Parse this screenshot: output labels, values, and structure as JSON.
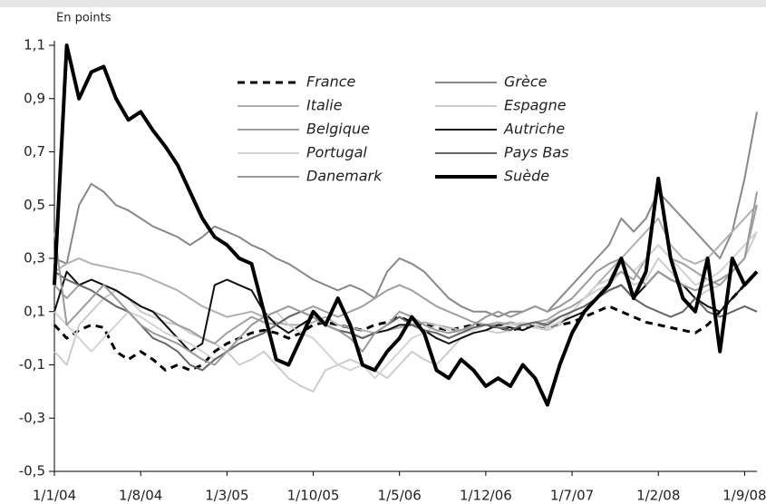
{
  "chart_data": {
    "type": "line",
    "y_label": "En points",
    "categories": [
      "1/1/04",
      null,
      null,
      null,
      null,
      null,
      null,
      "1/8/04",
      null,
      null,
      null,
      null,
      null,
      null,
      "1/3/05",
      null,
      null,
      null,
      null,
      null,
      null,
      "1/10/05",
      null,
      null,
      null,
      null,
      null,
      null,
      "1/5/06",
      null,
      null,
      null,
      null,
      null,
      null,
      "1/12/06",
      null,
      null,
      null,
      null,
      null,
      null,
      "1/7/07",
      null,
      null,
      null,
      null,
      null,
      null,
      "1/2/08",
      null,
      null,
      null,
      null,
      null,
      null,
      "1/9/08",
      null
    ],
    "ylim": [
      -0.5,
      1.1
    ],
    "yticks": [
      {
        "value": -0.5,
        "label": "-0,5"
      },
      {
        "value": -0.3,
        "label": "-0,3"
      },
      {
        "value": -0.1,
        "label": "-0,1"
      },
      {
        "value": 0.1,
        "label": "0,1"
      },
      {
        "value": 0.3,
        "label": "0,3"
      },
      {
        "value": 0.5,
        "label": "0,5"
      },
      {
        "value": 0.7,
        "label": "0,7"
      },
      {
        "value": 0.9,
        "label": "0,9"
      },
      {
        "value": 1.1,
        "label": "1,1"
      }
    ],
    "grid": false,
    "legend": "upper center",
    "series": [
      {
        "name": "France",
        "color": "#000000",
        "dashed": true,
        "values": [
          0.05,
          0.0,
          0.03,
          0.05,
          0.04,
          -0.05,
          -0.08,
          -0.05,
          -0.08,
          -0.12,
          -0.1,
          -0.12,
          -0.1,
          -0.05,
          -0.02,
          0.0,
          0.02,
          0.03,
          0.02,
          0.0,
          0.02,
          0.05,
          0.06,
          0.05,
          0.04,
          0.03,
          0.05,
          0.06,
          0.08,
          0.06,
          0.05,
          0.04,
          0.03,
          0.04,
          0.05,
          0.05,
          0.04,
          0.03,
          0.04,
          0.05,
          0.04,
          0.05,
          0.06,
          0.08,
          0.1,
          0.12,
          0.1,
          0.08,
          0.06,
          0.05,
          0.04,
          0.03,
          0.02,
          0.05,
          0.1,
          0.15,
          0.2,
          0.25
        ]
      },
      {
        "name": "Grèce",
        "color": "#888888",
        "values": [
          0.3,
          0.28,
          0.5,
          0.58,
          0.55,
          0.5,
          0.48,
          0.45,
          0.42,
          0.4,
          0.38,
          0.35,
          0.38,
          0.42,
          0.4,
          0.38,
          0.35,
          0.33,
          0.3,
          0.28,
          0.25,
          0.22,
          0.2,
          0.18,
          0.2,
          0.18,
          0.15,
          0.25,
          0.3,
          0.28,
          0.25,
          0.2,
          0.15,
          0.12,
          0.1,
          0.1,
          0.08,
          0.1,
          0.1,
          0.12,
          0.1,
          0.15,
          0.2,
          0.25,
          0.3,
          0.35,
          0.45,
          0.4,
          0.45,
          0.55,
          0.5,
          0.45,
          0.4,
          0.35,
          0.3,
          0.4,
          0.6,
          0.85
        ]
      },
      {
        "name": "Italie",
        "color": "#b0b0b0",
        "values": [
          0.25,
          0.28,
          0.3,
          0.28,
          0.27,
          0.26,
          0.25,
          0.24,
          0.22,
          0.2,
          0.18,
          0.15,
          0.12,
          0.1,
          0.08,
          0.09,
          0.1,
          0.08,
          0.06,
          0.05,
          0.05,
          0.06,
          0.08,
          0.05,
          0.04,
          0.03,
          0.02,
          0.03,
          0.04,
          0.05,
          0.06,
          0.05,
          0.04,
          0.03,
          0.04,
          0.05,
          0.06,
          0.05,
          0.05,
          0.04,
          0.06,
          0.08,
          0.1,
          0.15,
          0.2,
          0.25,
          0.3,
          0.35,
          0.4,
          0.45,
          0.35,
          0.3,
          0.28,
          0.3,
          0.35,
          0.4,
          0.45,
          0.5
        ]
      },
      {
        "name": "Espagne",
        "color": "#cccccc",
        "values": [
          -0.05,
          -0.1,
          0.05,
          0.1,
          0.15,
          0.18,
          0.15,
          0.1,
          0.08,
          0.06,
          0.05,
          0.02,
          0.0,
          -0.02,
          -0.05,
          -0.1,
          -0.08,
          -0.05,
          -0.1,
          -0.15,
          -0.18,
          -0.2,
          -0.12,
          -0.1,
          -0.08,
          -0.1,
          -0.12,
          -0.15,
          -0.1,
          -0.05,
          -0.08,
          -0.1,
          -0.05,
          0.0,
          0.02,
          0.03,
          0.02,
          0.03,
          0.05,
          0.04,
          0.03,
          0.05,
          0.1,
          0.15,
          0.18,
          0.2,
          0.25,
          0.2,
          0.22,
          0.3,
          0.25,
          0.2,
          0.15,
          0.18,
          0.2,
          0.25,
          0.3,
          0.4
        ]
      },
      {
        "name": "Belgique",
        "color": "#a0a0a0",
        "values": [
          0.2,
          0.15,
          0.2,
          0.22,
          0.2,
          0.18,
          0.15,
          0.12,
          0.1,
          0.08,
          0.05,
          0.03,
          0.0,
          -0.02,
          0.02,
          0.05,
          0.08,
          0.06,
          0.05,
          0.08,
          0.1,
          0.12,
          0.1,
          0.08,
          0.1,
          0.12,
          0.15,
          0.18,
          0.2,
          0.18,
          0.15,
          0.12,
          0.1,
          0.08,
          0.06,
          0.05,
          0.05,
          0.06,
          0.05,
          0.06,
          0.07,
          0.1,
          0.12,
          0.15,
          0.2,
          0.22,
          0.25,
          0.22,
          0.3,
          0.35,
          0.3,
          0.28,
          0.25,
          0.22,
          0.2,
          0.25,
          0.3,
          0.5
        ]
      },
      {
        "name": "Autriche",
        "color": "#111111",
        "values": [
          0.1,
          0.25,
          0.2,
          0.22,
          0.2,
          0.18,
          0.15,
          0.12,
          0.1,
          0.05,
          0.0,
          -0.05,
          -0.02,
          0.2,
          0.22,
          0.2,
          0.18,
          0.1,
          0.05,
          0.02,
          0.05,
          0.08,
          0.05,
          0.03,
          0.02,
          0.0,
          0.02,
          0.03,
          0.05,
          0.05,
          0.03,
          0.0,
          -0.02,
          0.0,
          0.02,
          0.03,
          0.05,
          0.04,
          0.03,
          0.05,
          0.04,
          0.06,
          0.08,
          0.1,
          0.15,
          0.18,
          0.2,
          0.15,
          0.2,
          0.25,
          0.22,
          0.2,
          0.15,
          0.12,
          0.1,
          0.15,
          0.2,
          0.25
        ]
      },
      {
        "name": "Portugal",
        "color": "#d4d4d4",
        "values": [
          0.1,
          0.05,
          0.0,
          -0.05,
          0.0,
          0.05,
          0.1,
          0.08,
          0.05,
          0.02,
          0.0,
          -0.02,
          -0.05,
          -0.08,
          -0.05,
          0.0,
          0.05,
          0.08,
          0.1,
          0.05,
          0.02,
          0.0,
          -0.05,
          -0.1,
          -0.12,
          -0.1,
          -0.15,
          -0.1,
          -0.05,
          0.0,
          0.02,
          0.05,
          0.03,
          0.02,
          0.03,
          0.05,
          0.04,
          0.05,
          0.06,
          0.05,
          0.04,
          0.06,
          0.1,
          0.15,
          0.2,
          0.22,
          0.3,
          0.25,
          0.3,
          0.35,
          0.3,
          0.25,
          0.2,
          0.22,
          0.25,
          0.3,
          0.35,
          0.4
        ]
      },
      {
        "name": "Pays Bas",
        "color": "#666666",
        "values": [
          0.25,
          0.22,
          0.2,
          0.18,
          0.15,
          0.12,
          0.1,
          0.05,
          0.0,
          -0.02,
          -0.05,
          -0.1,
          -0.12,
          -0.08,
          -0.05,
          -0.02,
          0.0,
          0.02,
          0.05,
          0.08,
          0.1,
          0.08,
          0.05,
          0.03,
          0.02,
          0.0,
          0.02,
          0.05,
          0.08,
          0.05,
          0.03,
          0.02,
          0.0,
          0.02,
          0.04,
          0.05,
          0.04,
          0.03,
          0.05,
          0.06,
          0.05,
          0.08,
          0.1,
          0.12,
          0.15,
          0.18,
          0.2,
          0.15,
          0.12,
          0.1,
          0.08,
          0.1,
          0.15,
          0.1,
          0.08,
          0.1,
          0.12,
          0.1
        ]
      },
      {
        "name": "Danemark",
        "color": "#9a9a9a",
        "values": [
          0.4,
          0.05,
          0.1,
          0.15,
          0.2,
          0.15,
          0.1,
          0.05,
          0.02,
          0.0,
          -0.02,
          -0.05,
          -0.08,
          -0.1,
          -0.05,
          0.0,
          0.05,
          0.08,
          0.1,
          0.12,
          0.1,
          0.08,
          0.05,
          0.03,
          0.0,
          -0.05,
          0.02,
          0.05,
          0.1,
          0.08,
          0.05,
          0.03,
          0.02,
          0.03,
          0.05,
          0.08,
          0.1,
          0.08,
          0.1,
          0.12,
          0.1,
          0.12,
          0.15,
          0.2,
          0.25,
          0.28,
          0.3,
          0.25,
          0.2,
          0.25,
          0.22,
          0.2,
          0.18,
          0.2,
          0.22,
          0.25,
          0.3,
          0.55
        ]
      },
      {
        "name": "Suède",
        "color": "#000000",
        "thick": true,
        "values": [
          0.2,
          1.1,
          0.9,
          1.0,
          1.02,
          0.9,
          0.82,
          0.85,
          0.78,
          0.72,
          0.65,
          0.55,
          0.45,
          0.38,
          0.35,
          0.3,
          0.28,
          0.1,
          -0.08,
          -0.1,
          0.0,
          0.1,
          0.05,
          0.15,
          0.05,
          -0.1,
          -0.12,
          -0.05,
          0.0,
          0.08,
          0.02,
          -0.12,
          -0.15,
          -0.08,
          -0.12,
          -0.18,
          -0.15,
          -0.18,
          -0.1,
          -0.15,
          -0.25,
          -0.1,
          0.02,
          0.1,
          0.15,
          0.2,
          0.3,
          0.15,
          0.25,
          0.6,
          0.3,
          0.15,
          0.1,
          0.3,
          -0.05,
          0.3,
          0.2,
          0.25
        ]
      }
    ]
  }
}
